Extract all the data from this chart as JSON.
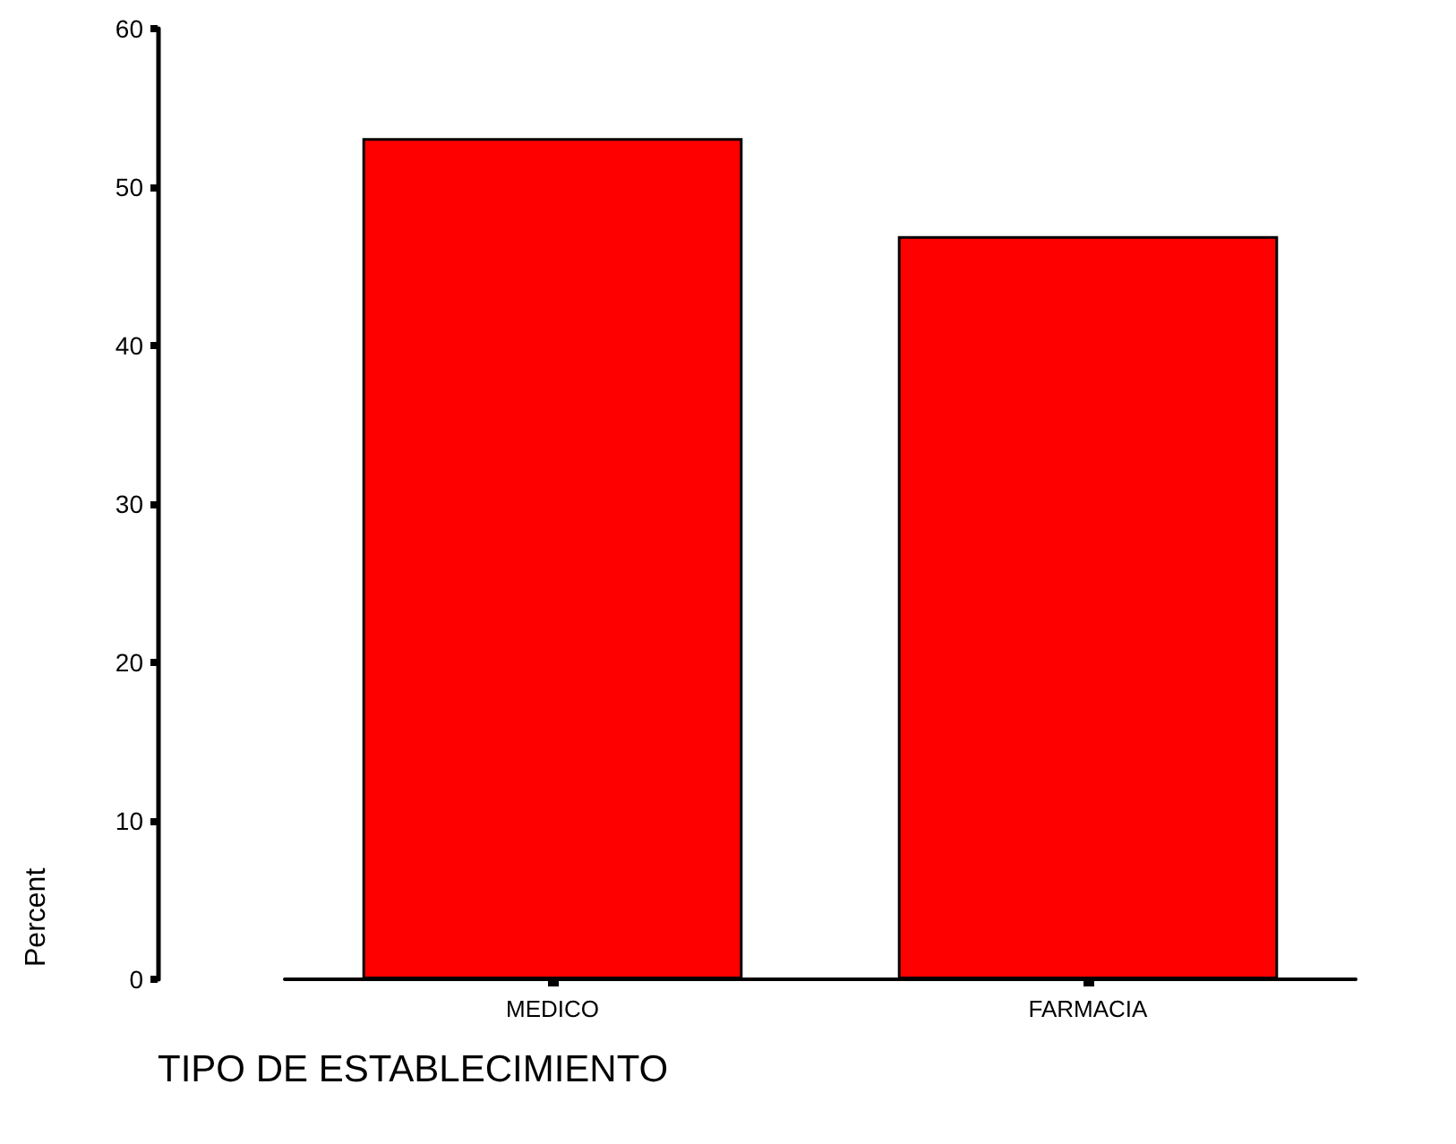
{
  "chart_data": {
    "type": "bar",
    "xlabel": "TIPO DE ESTABLECIMIENTO",
    "ylabel": "Percent",
    "categories": [
      "MEDICO",
      "FARMACIA"
    ],
    "values": [
      53.1,
      46.9
    ],
    "color": "#ff0000",
    "ylim": [
      0,
      60
    ],
    "yticks": [
      0,
      10,
      20,
      30,
      40,
      50,
      60
    ],
    "grid": false
  }
}
